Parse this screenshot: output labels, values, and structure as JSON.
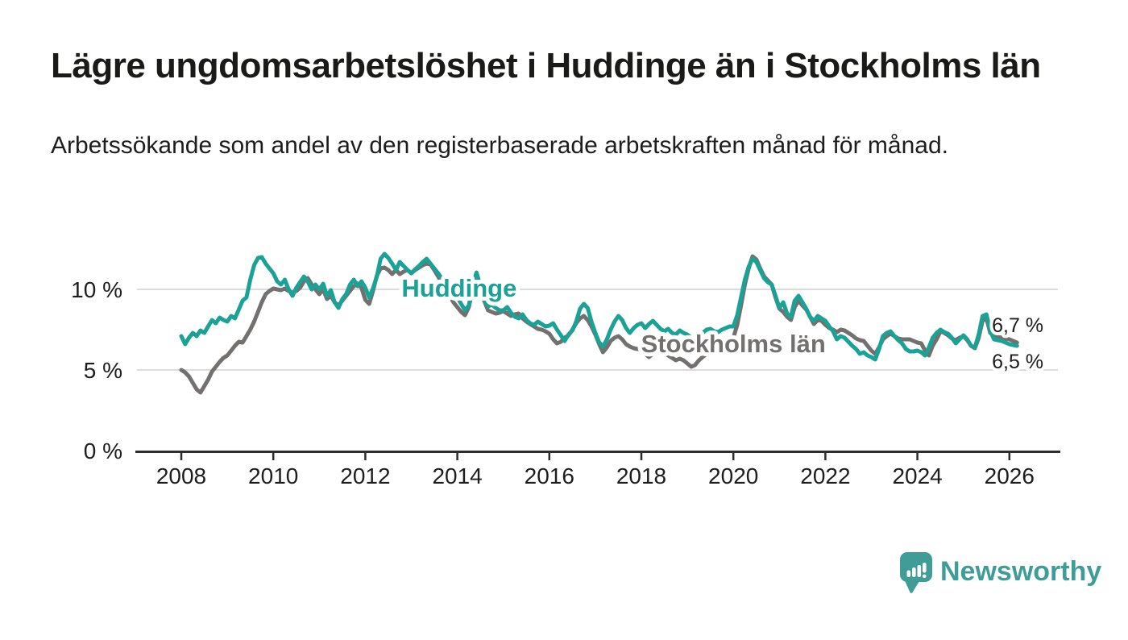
{
  "header": {
    "title": "Lägre ungdomsarbetslöshet i Huddinge än i Stockholms län",
    "subtitle": "Arbetssökande som andel av den registerbaserade arbetskraften månad för månad."
  },
  "chart_data": {
    "type": "line",
    "title": "Lägre ungdomsarbetslöshet i Huddinge än i Stockholms län",
    "x_axis": {
      "start_year": 2008,
      "points_per_year": 12,
      "ticks": [
        2008,
        2010,
        2012,
        2014,
        2016,
        2018,
        2020,
        2022,
        2024,
        2026
      ]
    },
    "y_axis": {
      "unit": "%",
      "range": [
        0,
        13
      ],
      "gridlines": [
        5,
        10
      ],
      "ticks": [
        {
          "value": 0,
          "label": "0 %"
        },
        {
          "value": 5,
          "label": "5 %"
        },
        {
          "value": 10,
          "label": "10 %"
        }
      ]
    },
    "series": [
      {
        "name": "Stockholms län",
        "color": "#737070",
        "label_anchor": {
          "x": 2020.0,
          "y": 6.1
        },
        "values": [
          5.0,
          4.85,
          4.6,
          4.2,
          3.8,
          3.6,
          4.0,
          4.4,
          4.9,
          5.2,
          5.5,
          5.75,
          5.9,
          6.2,
          6.5,
          6.75,
          6.7,
          7.1,
          7.5,
          8.0,
          8.6,
          9.2,
          9.7,
          9.9,
          10.05,
          10.0,
          9.95,
          10.05,
          9.9,
          9.8,
          9.9,
          10.1,
          10.5,
          10.7,
          10.3,
          10.0,
          9.7,
          10.0,
          9.4,
          9.6,
          9.2,
          9.0,
          9.3,
          9.6,
          9.9,
          10.2,
          10.35,
          10.1,
          9.35,
          9.1,
          9.9,
          10.85,
          11.3,
          11.35,
          11.2,
          10.95,
          11.2,
          10.95,
          11.1,
          11.2,
          11.0,
          11.2,
          11.35,
          11.5,
          11.6,
          11.55,
          11.2,
          10.8,
          10.4,
          10.0,
          9.6,
          9.2,
          8.9,
          8.6,
          8.4,
          8.9,
          10.0,
          10.85,
          10.1,
          9.3,
          8.7,
          8.6,
          8.5,
          8.55,
          8.65,
          8.5,
          8.35,
          8.45,
          8.5,
          8.2,
          8.0,
          7.85,
          7.7,
          7.55,
          7.5,
          7.4,
          7.25,
          6.9,
          6.65,
          6.75,
          7.0,
          7.15,
          7.5,
          7.9,
          8.2,
          8.35,
          8.1,
          7.7,
          7.2,
          6.6,
          6.1,
          6.4,
          6.8,
          7.0,
          7.1,
          6.9,
          6.6,
          6.45,
          6.35,
          6.3,
          6.3,
          6.0,
          5.8,
          6.0,
          6.1,
          6.05,
          6.05,
          5.9,
          5.75,
          5.6,
          5.7,
          5.6,
          5.4,
          5.2,
          5.3,
          5.6,
          5.8,
          6.0,
          6.2,
          6.35,
          6.5,
          6.6,
          6.7,
          6.85,
          7.0,
          7.8,
          9.0,
          10.3,
          11.3,
          12.05,
          11.85,
          11.3,
          10.8,
          10.55,
          10.3,
          9.5,
          8.8,
          8.6,
          8.3,
          8.1,
          8.9,
          9.3,
          9.0,
          8.75,
          8.3,
          7.85,
          8.1,
          8.05,
          7.8,
          7.6,
          7.5,
          7.35,
          7.5,
          7.45,
          7.3,
          7.15,
          6.95,
          6.85,
          6.8,
          6.5,
          6.2,
          6.0,
          6.4,
          6.9,
          7.1,
          7.25,
          7.1,
          6.95,
          6.9,
          6.9,
          6.9,
          6.8,
          6.7,
          6.65,
          6.2,
          5.9,
          6.5,
          6.9,
          7.4,
          7.3,
          7.15,
          6.95,
          6.85,
          7.0,
          7.1,
          6.85,
          6.5,
          6.35,
          7.0,
          8.05,
          8.2,
          7.3,
          7.1,
          7.05,
          7.0,
          6.95,
          6.9,
          6.8,
          6.7
        ]
      },
      {
        "name": "Huddinge",
        "color": "#1aa296",
        "label_anchor": {
          "x": 2014.04,
          "y": 9.55
        },
        "values": [
          7.1,
          6.6,
          7.0,
          7.3,
          7.1,
          7.45,
          7.3,
          7.7,
          8.1,
          7.9,
          8.25,
          8.1,
          8.0,
          8.35,
          8.2,
          8.75,
          9.3,
          9.5,
          10.6,
          11.5,
          11.95,
          12.0,
          11.6,
          11.3,
          11.0,
          10.5,
          10.3,
          10.6,
          10.0,
          9.6,
          10.1,
          10.45,
          10.8,
          10.5,
          10.0,
          10.3,
          10.0,
          10.35,
          9.6,
          9.95,
          9.2,
          8.85,
          9.4,
          9.7,
          10.3,
          10.6,
          10.2,
          10.5,
          10.1,
          9.5,
          10.05,
          10.8,
          11.9,
          12.2,
          11.95,
          11.6,
          11.2,
          11.7,
          11.45,
          11.2,
          11.0,
          11.25,
          11.45,
          11.7,
          11.9,
          11.6,
          11.3,
          11.0,
          10.65,
          10.35,
          10.05,
          9.75,
          9.5,
          9.1,
          8.7,
          9.0,
          10.2,
          11.05,
          10.2,
          9.4,
          8.95,
          9.05,
          8.85,
          8.7,
          8.7,
          8.9,
          8.55,
          8.3,
          8.2,
          8.45,
          8.1,
          7.9,
          7.8,
          8.0,
          7.85,
          7.7,
          7.75,
          7.9,
          7.5,
          7.15,
          6.8,
          7.2,
          7.45,
          8.0,
          8.8,
          9.1,
          8.85,
          8.0,
          7.3,
          6.7,
          6.45,
          6.9,
          7.5,
          8.0,
          8.35,
          8.1,
          7.6,
          7.3,
          7.6,
          7.8,
          7.9,
          7.6,
          7.85,
          8.05,
          7.8,
          7.55,
          7.4,
          7.55,
          7.3,
          7.2,
          7.45,
          7.3,
          7.2,
          7.0,
          6.9,
          7.1,
          7.3,
          7.5,
          7.55,
          7.4,
          7.35,
          7.5,
          7.6,
          7.7,
          7.7,
          8.4,
          9.5,
          10.6,
          11.4,
          11.9,
          11.7,
          11.2,
          10.7,
          10.45,
          10.3,
          9.6,
          8.85,
          9.2,
          8.5,
          8.3,
          9.3,
          9.6,
          9.2,
          8.8,
          8.3,
          8.05,
          8.35,
          8.2,
          8.05,
          7.7,
          7.4,
          6.9,
          7.1,
          7.0,
          6.75,
          6.5,
          6.3,
          6.0,
          6.1,
          5.9,
          5.8,
          5.65,
          6.3,
          7.1,
          7.3,
          7.4,
          7.1,
          6.85,
          6.65,
          6.3,
          6.15,
          6.15,
          6.2,
          6.1,
          5.9,
          6.4,
          7.0,
          7.3,
          7.5,
          7.35,
          7.25,
          7.0,
          6.65,
          6.9,
          7.15,
          6.9,
          6.5,
          6.4,
          7.2,
          8.35,
          8.45,
          7.4,
          6.9,
          6.85,
          6.8,
          6.7,
          6.6,
          6.55,
          6.5
        ]
      }
    ],
    "end_labels": [
      {
        "series": "Stockholms län",
        "text": "6,7 %",
        "x": 2025.62,
        "y": 7.35
      },
      {
        "series": "Huddinge",
        "text": "6,5 %",
        "x": 2025.62,
        "y": 5.1
      }
    ]
  },
  "footer": {
    "brand": "Newsworthy"
  },
  "colors": {
    "background": "#FFFFFF",
    "title": "#1A1A18",
    "text": "#1D1D1D",
    "grid": "#DCDCDC",
    "axis": "#2D2D2D",
    "logo": "#3F9C96",
    "halo": "#FFFFFF"
  }
}
